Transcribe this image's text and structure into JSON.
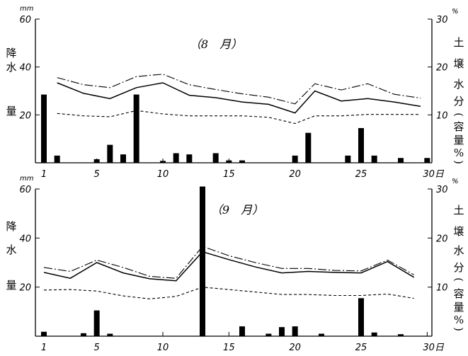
{
  "chart_data": [
    {
      "type": "bar+line",
      "title": "（8　月）",
      "ylabel_left_chars": [
        "降",
        "水",
        "量"
      ],
      "left_unit": "mm",
      "ylabel_right_chars": [
        "土",
        "壌",
        "水",
        "分",
        "(",
        "容",
        "量",
        "%",
        ")"
      ],
      "right_unit": "%",
      "xlim": [
        1,
        31
      ],
      "ylim_left": [
        0,
        60
      ],
      "ylim_right": [
        0,
        30
      ],
      "x_ticks": [
        "1",
        "5",
        "10",
        "15",
        "20",
        "25"
      ],
      "x_tick_values": [
        1,
        5,
        10,
        15,
        20,
        25
      ],
      "x_last_tick": "30日",
      "x_last_tick_value": 30,
      "y_ticks_left": [
        "20",
        "40",
        "60"
      ],
      "y_tick_values_left": [
        20,
        40,
        60
      ],
      "y_ticks_right": [
        "10",
        "20",
        "30"
      ],
      "y_tick_values_right": [
        10,
        20,
        30
      ],
      "bars": [
        {
          "x": 1,
          "value": 28.5
        },
        {
          "x": 2,
          "value": 3
        },
        {
          "x": 5,
          "value": 1.5
        },
        {
          "x": 6,
          "value": 7.5
        },
        {
          "x": 7,
          "value": 3.5
        },
        {
          "x": 8,
          "value": 28.5
        },
        {
          "x": 10,
          "value": 0.8
        },
        {
          "x": 11,
          "value": 4
        },
        {
          "x": 12,
          "value": 3.5
        },
        {
          "x": 14,
          "value": 4
        },
        {
          "x": 15,
          "value": 1
        },
        {
          "x": 16,
          "value": 1
        },
        {
          "x": 20,
          "value": 3
        },
        {
          "x": 21,
          "value": 12.5
        },
        {
          "x": 24,
          "value": 3
        },
        {
          "x": 25,
          "value": 14.5
        },
        {
          "x": 26,
          "value": 3
        },
        {
          "x": 28,
          "value": 2
        },
        {
          "x": 30,
          "value": 2
        }
      ],
      "series": [
        {
          "style": "dash-dot",
          "points": [
            [
              2,
              17.8
            ],
            [
              4,
              16.3
            ],
            [
              6,
              15.7
            ],
            [
              8,
              18
            ],
            [
              10,
              18.5
            ],
            [
              12,
              16.3
            ],
            [
              14,
              15.3
            ],
            [
              16,
              14.4
            ],
            [
              18,
              13.7
            ],
            [
              20,
              12.3
            ],
            [
              21.5,
              16.5
            ],
            [
              23.5,
              15.2
            ],
            [
              25.5,
              16.5
            ],
            [
              27.5,
              14.3
            ],
            [
              29.5,
              13.5
            ]
          ]
        },
        {
          "style": "solid",
          "points": [
            [
              2,
              16.7
            ],
            [
              4,
              14.5
            ],
            [
              6,
              13.4
            ],
            [
              8,
              15.7
            ],
            [
              10,
              16.7
            ],
            [
              12,
              14.1
            ],
            [
              14,
              13.6
            ],
            [
              16,
              12.7
            ],
            [
              18,
              12.2
            ],
            [
              20,
              10.4
            ],
            [
              21.5,
              15
            ],
            [
              23.5,
              12.9
            ],
            [
              25.5,
              13.4
            ],
            [
              27.5,
              12.7
            ],
            [
              29.5,
              11.8
            ]
          ]
        },
        {
          "style": "dashed",
          "points": [
            [
              2,
              10.3
            ],
            [
              4,
              9.8
            ],
            [
              6,
              9.6
            ],
            [
              8,
              10.9
            ],
            [
              10,
              10.2
            ],
            [
              12,
              9.8
            ],
            [
              14,
              9.8
            ],
            [
              16,
              9.8
            ],
            [
              18,
              9.5
            ],
            [
              20,
              8.2
            ],
            [
              21.5,
              9.8
            ],
            [
              23.5,
              9.8
            ],
            [
              25.5,
              10.1
            ],
            [
              27.5,
              10.1
            ],
            [
              29.5,
              10.1
            ]
          ]
        }
      ]
    },
    {
      "type": "bar+line",
      "title": "（9　月）",
      "ylabel_left_chars": [
        "降",
        "水",
        "量"
      ],
      "left_unit": "mm",
      "ylabel_right_chars": [
        "土",
        "壌",
        "水",
        "分",
        "(",
        "容",
        "量",
        "%",
        ")"
      ],
      "right_unit": "%",
      "xlim": [
        1,
        31
      ],
      "ylim_left": [
        0,
        60
      ],
      "ylim_right": [
        0,
        30
      ],
      "x_ticks": [
        "1",
        "5",
        "10",
        "15",
        "20",
        "25"
      ],
      "x_tick_values": [
        1,
        5,
        10,
        15,
        20,
        25
      ],
      "x_last_tick": "30日",
      "x_last_tick_value": 30,
      "y_ticks_left": [
        "20",
        "40",
        "60"
      ],
      "y_tick_values_left": [
        20,
        40,
        60
      ],
      "y_ticks_right": [
        "10",
        "20",
        "30"
      ],
      "y_tick_values_right": [
        10,
        20,
        30
      ],
      "bars": [
        {
          "x": 1,
          "value": 1.8
        },
        {
          "x": 4,
          "value": 1.2
        },
        {
          "x": 5,
          "value": 10.5
        },
        {
          "x": 6,
          "value": 1
        },
        {
          "x": 13,
          "value": 61
        },
        {
          "x": 16,
          "value": 4
        },
        {
          "x": 18,
          "value": 1
        },
        {
          "x": 19,
          "value": 3.7
        },
        {
          "x": 20,
          "value": 4
        },
        {
          "x": 22,
          "value": 1
        },
        {
          "x": 25,
          "value": 15.5
        },
        {
          "x": 26,
          "value": 1.5
        },
        {
          "x": 28,
          "value": 0.8
        }
      ],
      "series": [
        {
          "style": "dash-dot",
          "points": [
            [
              1,
              14
            ],
            [
              3,
              13.2
            ],
            [
              5,
              15.5
            ],
            [
              7,
              14
            ],
            [
              9,
              12.2
            ],
            [
              11,
              11.8
            ],
            [
              13,
              18.3
            ],
            [
              15,
              16.4
            ],
            [
              17,
              15
            ],
            [
              19,
              13.8
            ],
            [
              21,
              13.8
            ],
            [
              23,
              13.4
            ],
            [
              25,
              13.3
            ],
            [
              27,
              15.5
            ],
            [
              29,
              12.5
            ]
          ]
        },
        {
          "style": "solid",
          "points": [
            [
              1,
              13
            ],
            [
              3,
              11.8
            ],
            [
              5,
              15
            ],
            [
              7,
              12.9
            ],
            [
              9,
              11.7
            ],
            [
              11,
              11.3
            ],
            [
              13,
              17.2
            ],
            [
              15,
              15.6
            ],
            [
              17,
              14.1
            ],
            [
              19,
              12.9
            ],
            [
              21,
              13.2
            ],
            [
              23,
              13
            ],
            [
              25,
              12.9
            ],
            [
              27,
              15.2
            ],
            [
              29,
              12
            ]
          ]
        },
        {
          "style": "dashed",
          "points": [
            [
              1,
              9.4
            ],
            [
              3,
              9.5
            ],
            [
              5,
              9.2
            ],
            [
              7,
              8.2
            ],
            [
              9,
              7.6
            ],
            [
              11,
              8.1
            ],
            [
              13,
              10
            ],
            [
              15,
              9.5
            ],
            [
              17,
              9
            ],
            [
              19,
              8.5
            ],
            [
              21,
              8.5
            ],
            [
              23,
              8.3
            ],
            [
              25,
              8.3
            ],
            [
              27,
              8.6
            ],
            [
              29,
              7.7
            ]
          ]
        }
      ]
    }
  ]
}
